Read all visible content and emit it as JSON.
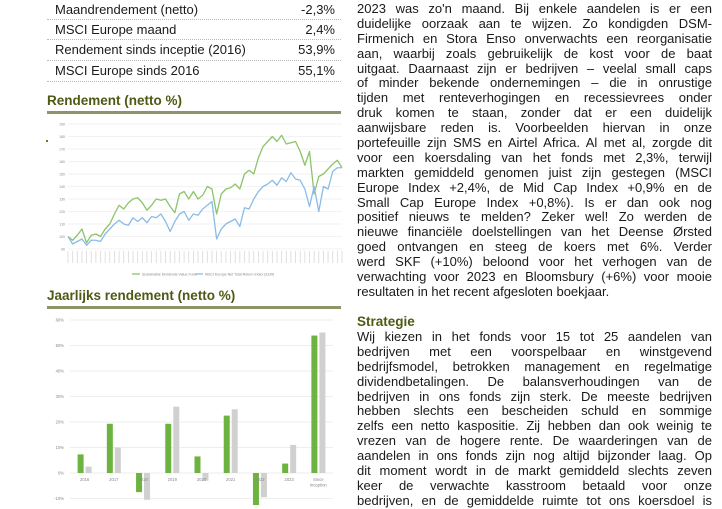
{
  "key_figures": [
    {
      "label": "Maandrendement (netto)",
      "value": "-2,3%"
    },
    {
      "label": "MSCI Europe maand",
      "value": "2,4%"
    },
    {
      "label": "Rendement sinds inceptie (2016)",
      "value": "53,9%"
    },
    {
      "label": "MSCI Europe sinds 2016",
      "value": "55,1%"
    }
  ],
  "sections": {
    "rendement_title": "Rendement (netto %)",
    "jaarlijks_title": "Jaarlijks rendement (netto %)",
    "strategie_title": "Strategie"
  },
  "commentary_lines": [
    "2023 was zo'n maand. Bij enkele aandelen is er een",
    "duidelijke oorzaak aan te wijzen. Zo kondigden DSM-",
    "Firmenich en Stora Enso onverwachts een reorganisatie",
    "aan, waarbij zoals gebruikelijk de kost voor de baat",
    "uitgaat. Daarnaast zijn er bedrijven – veelal small caps",
    "of minder bekende ondernemingen – die in onrustige",
    "tijden met renteverhogingen en recessievrees onder",
    "druk komen te staan, zonder dat er een duidelijk",
    "aanwijsbare reden is. Voorbeelden hiervan in onze",
    "portefeuille zijn SMS en Airtel Africa. Al met al, zorgde dit",
    "voor een koersdaling van het fonds met 2,3%, terwijl",
    "markten gemiddeld genomen juist zijn gestegen (MSCI",
    "Europe Index +2,4%, de Mid Cap Index +0,9% en de",
    "Small Cap Europe Index +0,8%). Is er dan ook nog",
    "positief nieuws te melden? Zeker wel! Zo werden de",
    "nieuwe financiële doelstellingen van het Deense Ørsted",
    "goed ontvangen en steeg de koers met 6%. Verder",
    "werd SKF (+10%) beloond voor het verhogen van de",
    "verwachting voor 2023 en Bloomsbury (+6%) voor mooie",
    "resultaten in het recent afgesloten boekjaar."
  ],
  "strategy_lines": [
    "Wij kiezen in het fonds voor 15 tot 25 aandelen van",
    "bedrijven met een voorspelbaar en winstgevend",
    "bedrijfsmodel, betrokken management en regelmatige",
    "dividendbetalingen. De balansverhoudingen van de",
    "bedrijven in ons fonds zijn sterk. De meeste bedrijven",
    "hebben slechts een bescheiden schuld en sommige",
    "zelfs een netto kaspositie. Zij hebben dan ook weinig te",
    "vrezen van de hogere rente. De waarderingen van de",
    "aandelen in ons fonds zijn nog altijd bijzonder laag. Op",
    "dit moment wordt in de markt gemiddeld slechts zeven",
    "keer de verwachte kasstroom betaald voor onze",
    "bedrijven, en de gemiddelde ruimte tot ons koersdoel is"
  ],
  "chart_data": [
    {
      "type": "line",
      "title": "",
      "ylim": [
        90,
        190
      ],
      "yticks": [
        "90",
        "100",
        "110",
        "120",
        "130",
        "140",
        "150",
        "160",
        "170",
        "180",
        "190"
      ],
      "grid": true,
      "legend_placement": "bottom",
      "series": [
        {
          "name": "Sustainable Dividends Value Fund",
          "color": "#8cc46b",
          "values": [
            100,
            97,
            101,
            106,
            95,
            101,
            102,
            100,
            106,
            110,
            118,
            125,
            122,
            127,
            130,
            131,
            127,
            121,
            125,
            130,
            129,
            130,
            124,
            119,
            134,
            136,
            130,
            136,
            130,
            133,
            140,
            138,
            118,
            134,
            138,
            139,
            142,
            138,
            150,
            153,
            150,
            163,
            172,
            176,
            180,
            176,
            181,
            174,
            175,
            176,
            168,
            157,
            168,
            134,
            148,
            150,
            154,
            158,
            161,
            155
          ]
        },
        {
          "name": "MSCI Europe Net Total Return Index (EUR)",
          "color": "#8bbbe8",
          "values": [
            100,
            94,
            96,
            98,
            93,
            97,
            97,
            96,
            102,
            106,
            110,
            113,
            110,
            109,
            115,
            112,
            115,
            111,
            116,
            115,
            118,
            112,
            104,
            112,
            118,
            120,
            113,
            118,
            117,
            122,
            125,
            128,
            98,
            106,
            110,
            112,
            114,
            108,
            123,
            122,
            130,
            136,
            140,
            142,
            145,
            141,
            147,
            144,
            151,
            146,
            145,
            138,
            124,
            140,
            120,
            140,
            138,
            152,
            155,
            155
          ]
        }
      ]
    },
    {
      "type": "bar",
      "title": "",
      "categories": [
        "2016",
        "2017",
        "2018",
        "2019",
        "2020",
        "2021",
        "2022",
        "2023",
        "Since inception"
      ],
      "ylim": [
        -10,
        60
      ],
      "yticks": [
        "-10%",
        "0%",
        "10%",
        "20%",
        "30%",
        "40%",
        "50%",
        "60%"
      ],
      "grid": true,
      "series": [
        {
          "color": "#6db33f",
          "values": [
            7.3,
            19.3,
            -7.5,
            19.3,
            6.5,
            22.5,
            -14,
            3.7,
            53.9
          ]
        },
        {
          "color": "#d0d0d0",
          "values": [
            2.5,
            10,
            -10.5,
            26,
            -3,
            25,
            -9.5,
            11,
            55.1
          ]
        }
      ]
    }
  ]
}
